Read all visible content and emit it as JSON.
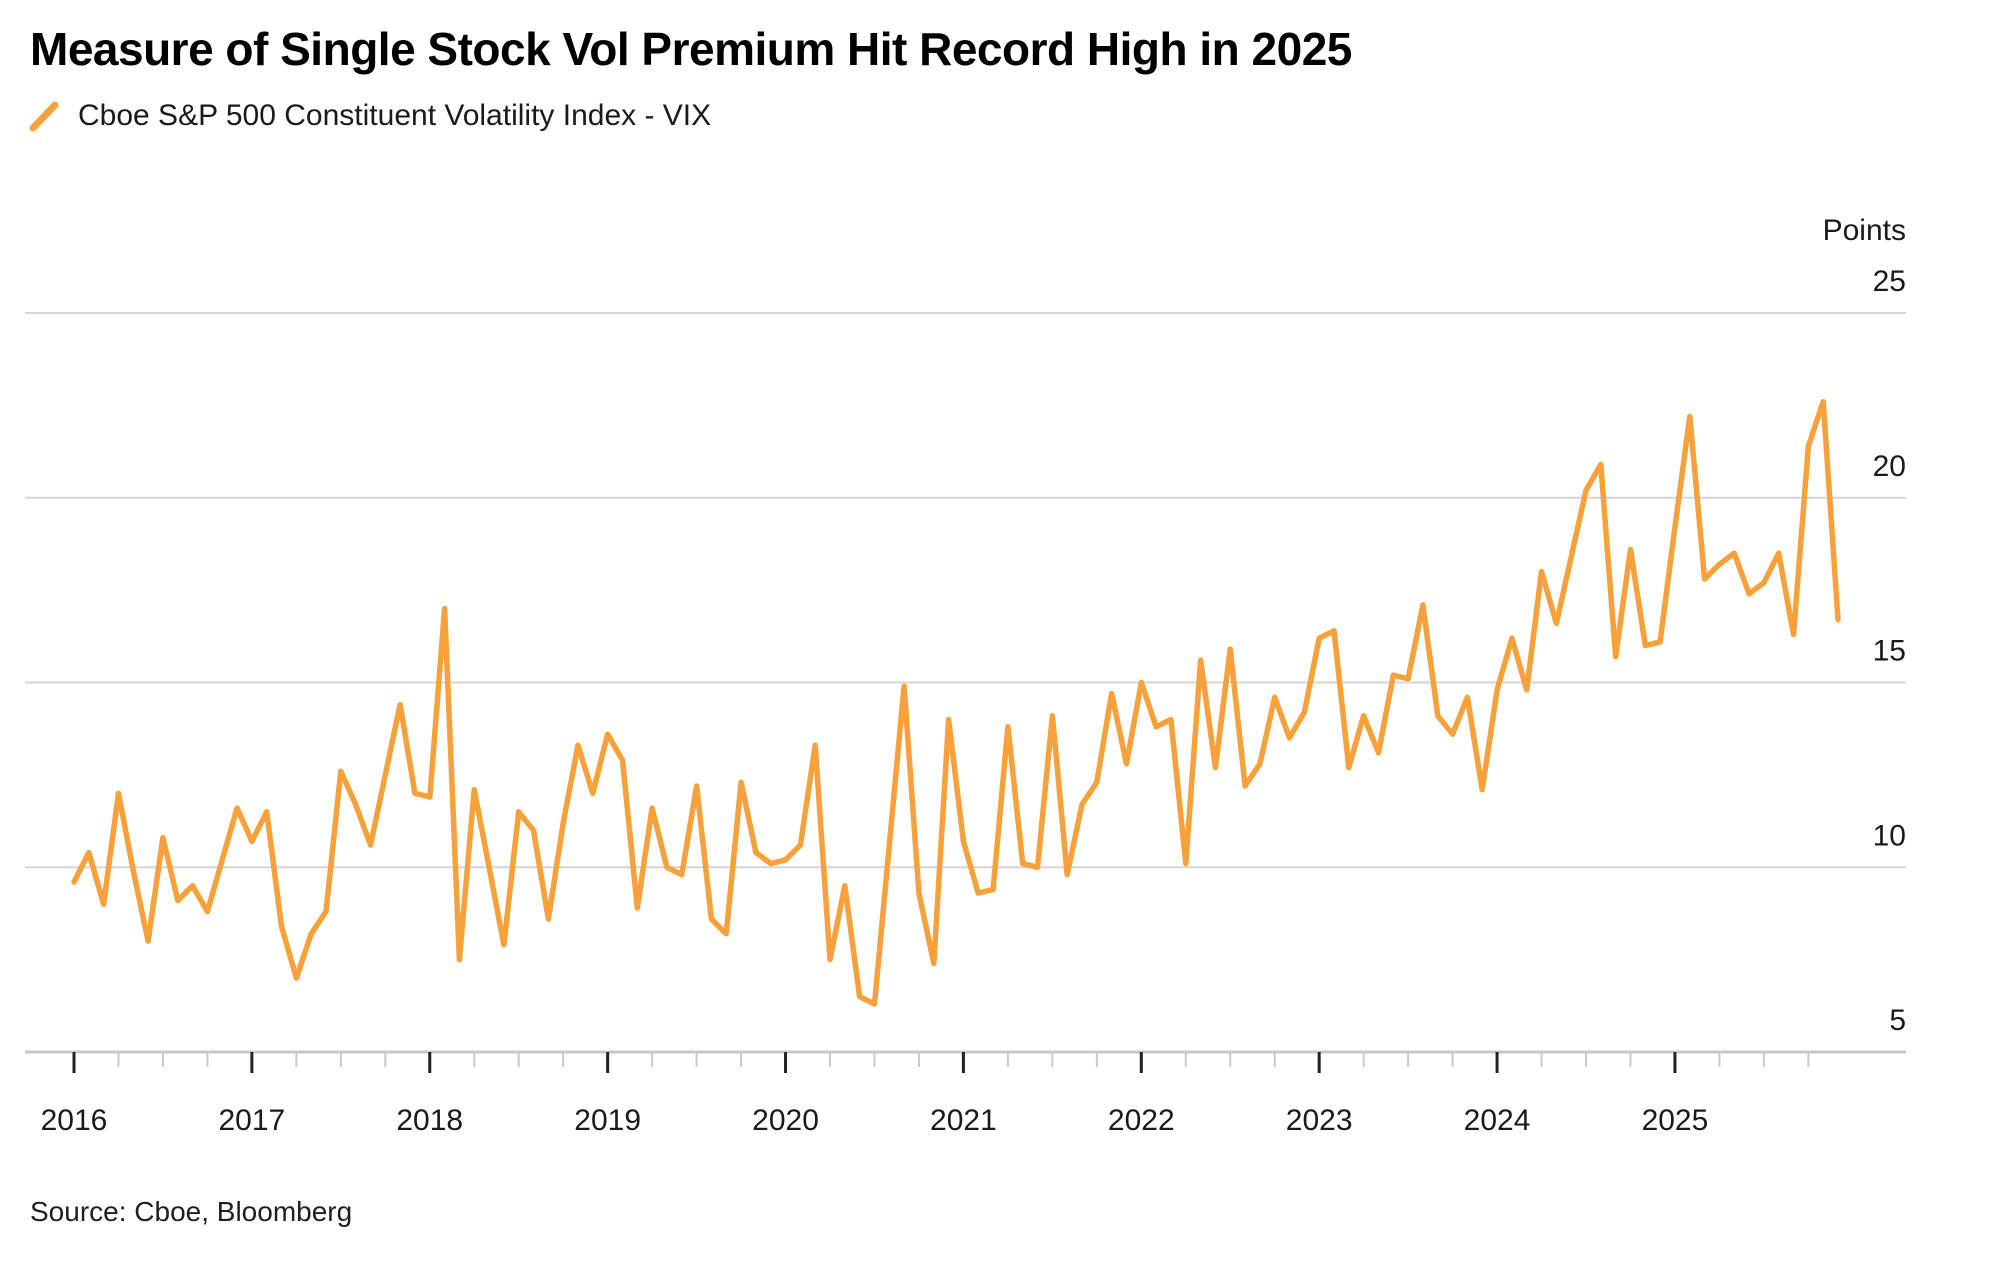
{
  "title": "Measure of Single Stock Vol Premium Hit Record High in 2025",
  "legend": {
    "label": "Cboe S&P 500 Constituent Volatility Index - VIX",
    "marker": "orange-slash-icon"
  },
  "source": "Source: Cboe, Bloomberg",
  "colors": {
    "line": "#F8A13A",
    "gridline": "#D6D6D6",
    "baseline": "#C7C7C7",
    "major_tick": "#222222",
    "minor_tick": "#C9C9C9",
    "text": "#000000",
    "axis_text": "#1a1a1a",
    "background": "#FFFFFF"
  },
  "y_axis": {
    "title": "Points",
    "tick_labels": [
      "25",
      "20",
      "15",
      "10",
      "5"
    ],
    "min": 5,
    "max": 25
  },
  "x_axis": {
    "year_labels": [
      "2016",
      "2017",
      "2018",
      "2019",
      "2020",
      "2021",
      "2022",
      "2023",
      "2024",
      "2025"
    ]
  },
  "chart_data": {
    "type": "line",
    "title": "Measure of Single Stock Vol Premium Hit Record High in 2025",
    "ylabel": "Points",
    "xlabel": "",
    "ylim": [
      5,
      25
    ],
    "yticks": [
      25,
      20,
      15,
      10,
      5
    ],
    "xticks": [
      2016,
      2017,
      2018,
      2019,
      2020,
      2021,
      2022,
      2023,
      2024,
      2025
    ],
    "grid": "horizontal",
    "legend_position": "top-left",
    "frequency": "monthly",
    "start": "2016-01",
    "end": "2025-12",
    "series": [
      {
        "name": "Cboe S&P 500 Constituent Volatility Index - VIX",
        "color": "#F8A13A",
        "values": [
          9.6,
          10.4,
          9.0,
          12.0,
          9.9,
          8.0,
          10.8,
          9.1,
          9.5,
          8.8,
          10.2,
          11.6,
          10.7,
          11.5,
          8.4,
          7.0,
          8.2,
          8.8,
          12.6,
          11.7,
          10.6,
          12.5,
          14.4,
          12.0,
          11.9,
          17.0,
          7.5,
          12.1,
          10.0,
          7.9,
          11.5,
          11.0,
          8.6,
          11.2,
          13.3,
          12.0,
          13.6,
          12.9,
          8.9,
          11.6,
          10.0,
          9.8,
          12.2,
          8.6,
          8.2,
          12.3,
          10.4,
          10.1,
          10.2,
          10.6,
          13.3,
          7.5,
          9.5,
          6.5,
          6.3,
          10.6,
          14.9,
          9.3,
          7.4,
          14.0,
          10.7,
          9.3,
          9.4,
          13.8,
          10.1,
          10.0,
          14.1,
          9.8,
          11.7,
          12.3,
          14.7,
          12.8,
          15.0,
          13.8,
          14.0,
          10.1,
          15.6,
          12.7,
          15.9,
          12.2,
          12.8,
          14.6,
          13.5,
          14.2,
          16.2,
          16.4,
          12.7,
          14.1,
          13.1,
          15.2,
          15.1,
          17.1,
          14.1,
          13.6,
          14.6,
          12.1,
          14.8,
          16.2,
          14.8,
          18.0,
          16.6,
          18.4,
          20.2,
          20.9,
          15.7,
          18.6,
          16.0,
          16.1,
          19.2,
          22.2,
          17.8,
          18.2,
          18.5,
          17.4,
          17.7,
          18.5,
          16.3,
          21.4,
          22.6,
          16.7
        ]
      }
    ]
  }
}
